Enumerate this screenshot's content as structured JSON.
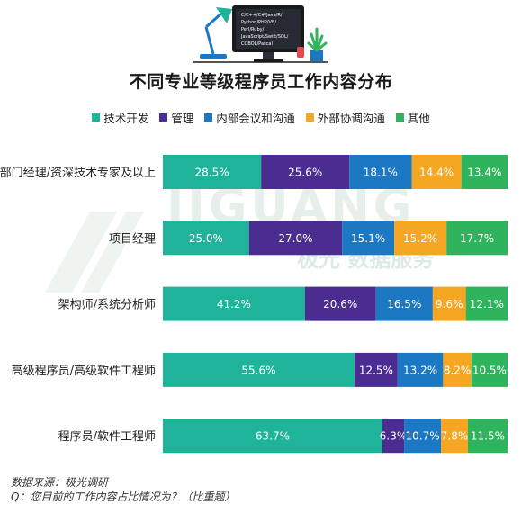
{
  "illustration": {
    "code_lines": [
      "C/C++/C#/Java/R/",
      "Python/PHP/VB/",
      "Perl/Ruby/",
      "JavaScript/Swift/SQL/",
      "COBOL/Pascal"
    ]
  },
  "watermark": {
    "brand": "JIGUANG",
    "cn": "极光 数据服务"
  },
  "footer": {
    "source": "数据来源：极光调研",
    "question": "Q：您目前的工作内容占比情况为？（比重题）"
  },
  "colors": {
    "series": [
      "#1fb49a",
      "#4b2c91",
      "#1c78c3",
      "#f5a623",
      "#2fb35c"
    ]
  },
  "chart_data": {
    "type": "bar",
    "orientation": "horizontal",
    "stacked": true,
    "title": "不同专业等级程序员工作内容分布",
    "legend_position": "top",
    "xlim": [
      0,
      100
    ],
    "unit": "%",
    "categories": [
      "部门经理/资深技术专家及以上",
      "项目经理",
      "架构师/系统分析师",
      "高级程序员/高级软件工程师",
      "程序员/软件工程师"
    ],
    "series": [
      {
        "name": "技术开发",
        "values": [
          28.5,
          25.0,
          41.2,
          55.6,
          63.7
        ],
        "labels": [
          "28.5%",
          "25.0%",
          "41.2%",
          "55.6%",
          "63.7%"
        ]
      },
      {
        "name": "管理",
        "values": [
          25.6,
          27.0,
          20.6,
          12.5,
          6.3
        ],
        "labels": [
          "25.6%",
          "27.0%",
          "20.6%",
          "12.5%",
          "6.3%"
        ]
      },
      {
        "name": "内部会议和沟通",
        "values": [
          18.1,
          15.1,
          16.5,
          13.2,
          10.7
        ],
        "labels": [
          "18.1%",
          "15.1%",
          "16.5%",
          "13.2%",
          "10.7%"
        ]
      },
      {
        "name": "外部协调沟通",
        "values": [
          14.4,
          15.2,
          9.6,
          8.2,
          7.8
        ],
        "labels": [
          "14.4%",
          "15.2%",
          "9.6%",
          "8.2%",
          "7.8%"
        ]
      },
      {
        "name": "其他",
        "values": [
          13.4,
          17.7,
          12.1,
          10.5,
          11.5
        ],
        "labels": [
          "13.4%",
          "17.7%",
          "12.1%",
          "10.5%",
          "11.5%"
        ]
      }
    ]
  }
}
